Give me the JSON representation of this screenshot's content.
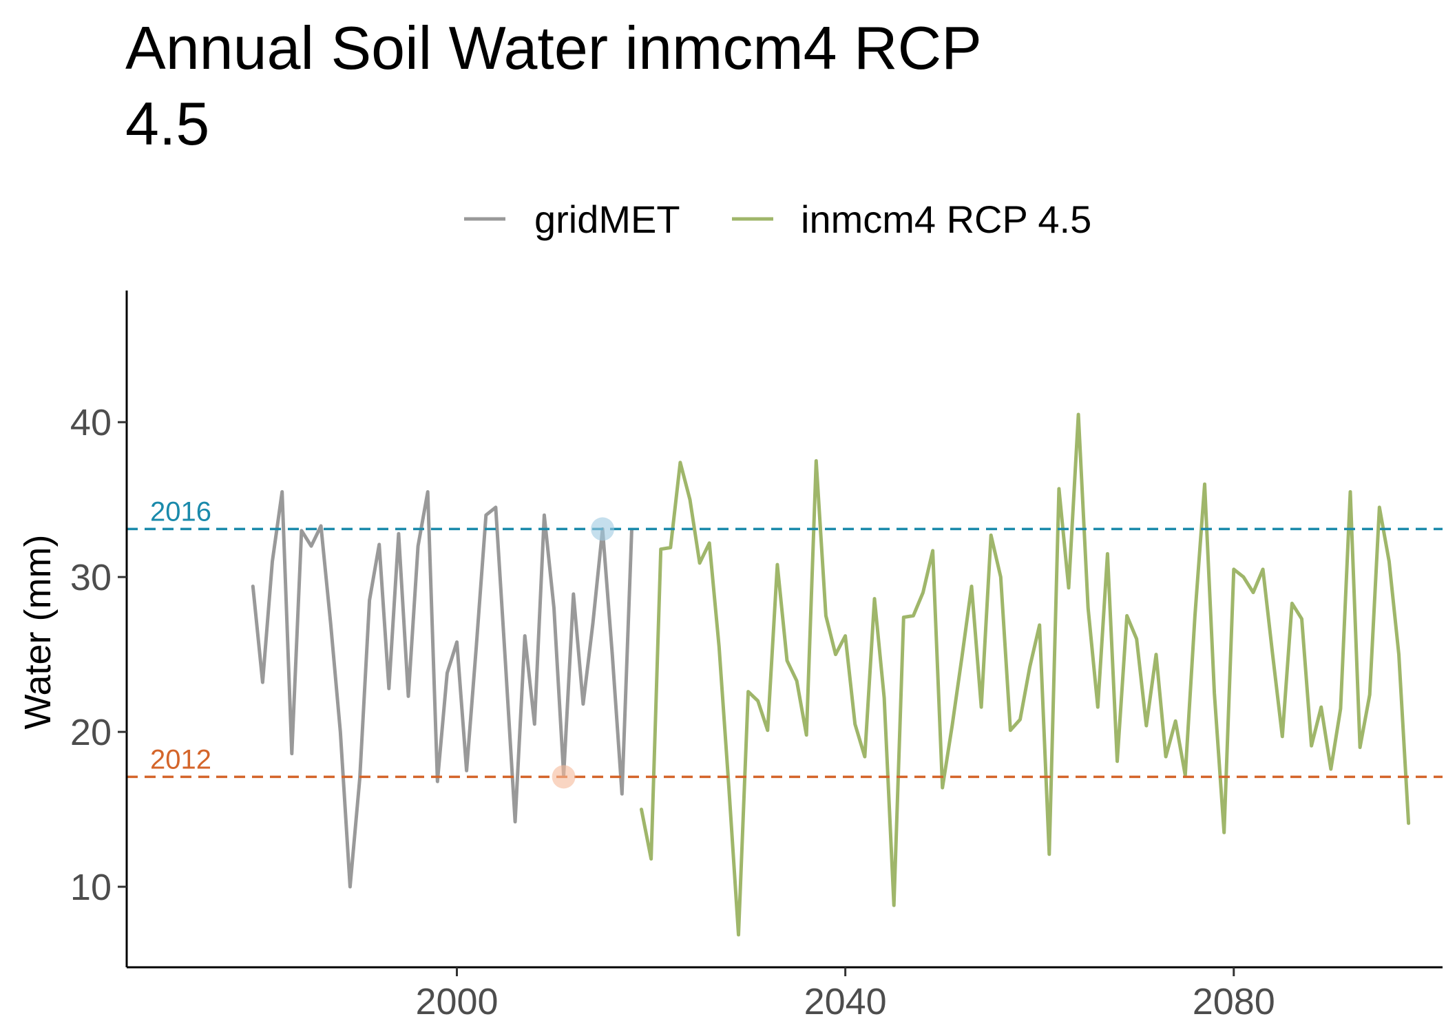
{
  "chart_data": {
    "type": "line",
    "title_line1": "Annual Soil Water inmcm4 RCP",
    "title_line2": "4.5",
    "xlabel": "",
    "ylabel": "Water (mm)",
    "xlim": [
      1966,
      2101.5
    ],
    "ylim": [
      4.8,
      48.5
    ],
    "x_ticks": [
      2000,
      2040,
      2080
    ],
    "y_ticks": [
      10,
      20,
      30,
      40
    ],
    "legend_position": "top",
    "grid": false,
    "series": [
      {
        "name": "gridMET",
        "color": "#999999",
        "points": [
          [
            1979,
            29.4
          ],
          [
            1980,
            23.2
          ],
          [
            1981,
            31.0
          ],
          [
            1982,
            35.5
          ],
          [
            1983,
            18.6
          ],
          [
            1984,
            33.0
          ],
          [
            1985,
            32.0
          ],
          [
            1986,
            33.3
          ],
          [
            1987,
            27.0
          ],
          [
            1988,
            20.0
          ],
          [
            1989,
            10.0
          ],
          [
            1990,
            17.0
          ],
          [
            1991,
            28.5
          ],
          [
            1992,
            32.1
          ],
          [
            1993,
            22.8
          ],
          [
            1994,
            32.8
          ],
          [
            1995,
            22.3
          ],
          [
            1996,
            32.0
          ],
          [
            1997,
            35.5
          ],
          [
            1998,
            16.8
          ],
          [
            1999,
            23.8
          ],
          [
            2000,
            25.8
          ],
          [
            2001,
            17.5
          ],
          [
            2002,
            25.5
          ],
          [
            2003,
            34.0
          ],
          [
            2004,
            34.5
          ],
          [
            2005,
            24.5
          ],
          [
            2006,
            14.2
          ],
          [
            2007,
            26.2
          ],
          [
            2008,
            20.5
          ],
          [
            2009,
            34.0
          ],
          [
            2010,
            28.0
          ],
          [
            2011,
            17.2
          ],
          [
            2012,
            28.9
          ],
          [
            2013,
            21.8
          ],
          [
            2014,
            27.0
          ],
          [
            2015,
            33.1
          ],
          [
            2016,
            25.0
          ],
          [
            2017,
            16.0
          ],
          [
            2018,
            33.0
          ]
        ]
      },
      {
        "name": "inmcm4 RCP 4.5",
        "color": "#9fb66a",
        "points": [
          [
            2019,
            15.0
          ],
          [
            2020,
            11.8
          ],
          [
            2021,
            31.8
          ],
          [
            2022,
            31.9
          ],
          [
            2023,
            37.4
          ],
          [
            2024,
            35.0
          ],
          [
            2025,
            30.9
          ],
          [
            2026,
            32.2
          ],
          [
            2027,
            25.5
          ],
          [
            2028,
            16.5
          ],
          [
            2029,
            6.9
          ],
          [
            2030,
            22.6
          ],
          [
            2031,
            22.0
          ],
          [
            2032,
            20.1
          ],
          [
            2033,
            30.8
          ],
          [
            2034,
            24.6
          ],
          [
            2035,
            23.3
          ],
          [
            2036,
            19.8
          ],
          [
            2037,
            37.5
          ],
          [
            2038,
            27.5
          ],
          [
            2039,
            25.0
          ],
          [
            2040,
            26.2
          ],
          [
            2041,
            20.5
          ],
          [
            2042,
            18.4
          ],
          [
            2043,
            28.6
          ],
          [
            2044,
            22.2
          ],
          [
            2045,
            8.8
          ],
          [
            2046,
            27.4
          ],
          [
            2047,
            27.5
          ],
          [
            2048,
            29.0
          ],
          [
            2049,
            31.7
          ],
          [
            2050,
            16.4
          ],
          [
            2051,
            20.4
          ],
          [
            2052,
            24.8
          ],
          [
            2053,
            29.4
          ],
          [
            2054,
            21.6
          ],
          [
            2055,
            32.7
          ],
          [
            2056,
            30.0
          ],
          [
            2057,
            20.1
          ],
          [
            2058,
            20.8
          ],
          [
            2059,
            24.2
          ],
          [
            2060,
            26.9
          ],
          [
            2061,
            12.1
          ],
          [
            2062,
            35.7
          ],
          [
            2063,
            29.3
          ],
          [
            2064,
            40.5
          ],
          [
            2065,
            28.0
          ],
          [
            2066,
            21.6
          ],
          [
            2067,
            31.5
          ],
          [
            2068,
            18.1
          ],
          [
            2069,
            27.5
          ],
          [
            2070,
            26.0
          ],
          [
            2071,
            20.4
          ],
          [
            2072,
            25.0
          ],
          [
            2073,
            18.4
          ],
          [
            2074,
            20.7
          ],
          [
            2075,
            17.2
          ],
          [
            2076,
            27.5
          ],
          [
            2077,
            36.0
          ],
          [
            2078,
            22.5
          ],
          [
            2079,
            13.5
          ],
          [
            2080,
            30.5
          ],
          [
            2081,
            30.0
          ],
          [
            2082,
            29.0
          ],
          [
            2083,
            30.5
          ],
          [
            2084,
            25.0
          ],
          [
            2085,
            19.7
          ],
          [
            2086,
            28.3
          ],
          [
            2087,
            27.3
          ],
          [
            2088,
            19.1
          ],
          [
            2089,
            21.6
          ],
          [
            2090,
            17.6
          ],
          [
            2091,
            21.5
          ],
          [
            2092,
            35.5
          ],
          [
            2093,
            19.0
          ],
          [
            2094,
            22.4
          ],
          [
            2095,
            34.5
          ],
          [
            2096,
            31.0
          ],
          [
            2097,
            25.0
          ],
          [
            2098,
            14.1
          ]
        ]
      }
    ],
    "reference_lines": [
      {
        "label": "2016",
        "value": 33.1,
        "color": "#1a8aab",
        "marker_x": 2015,
        "marker_color": "#9ecae1"
      },
      {
        "label": "2012",
        "value": 17.1,
        "color": "#d4652a",
        "marker_x": 2011,
        "marker_color": "#f5b99a"
      }
    ]
  }
}
